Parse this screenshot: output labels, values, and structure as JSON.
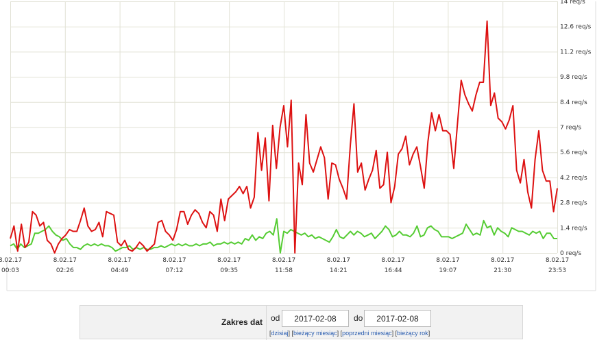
{
  "chart_data": {
    "type": "line",
    "x_tick_labels": [
      [
        "8.02.17",
        "00:03"
      ],
      [
        "8.02.17",
        "02:26"
      ],
      [
        "8.02.17",
        "04:49"
      ],
      [
        "8.02.17",
        "07:12"
      ],
      [
        "8.02.17",
        "09:35"
      ],
      [
        "8.02.17",
        "11:58"
      ],
      [
        "8.02.17",
        "14:21"
      ],
      [
        "8.02.17",
        "16:44"
      ],
      [
        "8.02.17",
        "19:07"
      ],
      [
        "8.02.17",
        "21:30"
      ],
      [
        "8.02.17",
        "23:53"
      ]
    ],
    "y_tick_labels": [
      "0 req/s",
      "1.4 req/s",
      "2.8 req/s",
      "4.2 req/s",
      "5.6 req/s",
      "7 req/s",
      "8.4 req/s",
      "9.8 req/s",
      "11.2 req/s",
      "12.6 req/s",
      "14 req/s"
    ],
    "ylim": [
      0,
      14
    ],
    "grid": true,
    "series": [
      {
        "color": "#dd1111",
        "values": [
          0.8,
          1.5,
          0.1,
          1.6,
          0.3,
          0.6,
          2.3,
          2.1,
          1.5,
          1.7,
          0.7,
          0.5,
          0,
          0.5,
          0.8,
          1.0,
          1.3,
          1.2,
          1.2,
          1.8,
          2.5,
          1.5,
          1.2,
          1.3,
          1.7,
          0.9,
          2.3,
          2.2,
          2.1,
          0.6,
          0.4,
          0.7,
          0.2,
          0.1,
          0.3,
          0.6,
          0.4,
          0.1,
          0.3,
          0.5,
          1.7,
          1.8,
          1.2,
          1.0,
          0.7,
          1.3,
          2.3,
          2.3,
          1.6,
          2.1,
          2.4,
          2.2,
          1.7,
          1.4,
          2.3,
          2.1,
          1.2,
          3.0,
          1.8,
          3.0,
          3.2,
          3.4,
          3.7,
          3.3,
          3.7,
          2.5,
          3.1,
          6.7,
          4.6,
          6.4,
          2.9,
          7.1,
          4.7,
          7.0,
          8.2,
          5.9,
          8.5,
          0,
          5.0,
          3.8,
          7.7,
          5.0,
          4.5,
          5.2,
          5.9,
          5.3,
          3.0,
          5.0,
          4.9,
          4.1,
          3.6,
          3.0,
          6.0,
          8.3,
          4.5,
          5.0,
          3.5,
          4.1,
          4.6,
          5.7,
          3.6,
          3.8,
          5.6,
          2.8,
          3.7,
          5.5,
          5.8,
          6.5,
          4.9,
          5.5,
          5.9,
          4.8,
          3.6,
          6.2,
          7.8,
          6.8,
          7.7,
          6.8,
          6.8,
          6.6,
          4.7,
          7.2,
          9.6,
          8.8,
          8.3,
          7.9,
          8.8,
          9.5,
          9.5,
          12.9,
          8.2,
          8.9,
          7.5,
          7.3,
          6.9,
          7.4,
          8.2,
          4.6,
          3.9,
          5.2,
          3.4,
          2.5,
          5.2,
          6.8,
          4.6,
          4.0,
          4.0,
          2.3,
          3.6
        ]
      },
      {
        "color": "#55cc33",
        "values": [
          0.4,
          0.5,
          0.2,
          0.5,
          0.3,
          0.4,
          0.5,
          1.1,
          1.1,
          1.2,
          1.3,
          1.5,
          1.2,
          1.0,
          0.9,
          0.7,
          0.8,
          0.5,
          0.3,
          0.3,
          0.2,
          0.4,
          0.5,
          0.4,
          0.5,
          0.4,
          0.5,
          0.4,
          0.4,
          0.3,
          0.1,
          0.2,
          0.3,
          0.3,
          0.4,
          0.2,
          0.3,
          0.2,
          0.3,
          0.2,
          0.2,
          0.3,
          0.3,
          0.4,
          0.3,
          0.4,
          0.5,
          0.4,
          0.5,
          0.4,
          0.5,
          0.4,
          0.4,
          0.5,
          0.4,
          0.5,
          0.5,
          0.6,
          0.4,
          0.5,
          0.5,
          0.6,
          0.5,
          0.6,
          0.5,
          0.6,
          0.5,
          0.8,
          0.7,
          1.0,
          0.7,
          0.9,
          0.8,
          1.1,
          1.2,
          1.0,
          1.9,
          0,
          1.2,
          1.1,
          1.3,
          1.2,
          1.1,
          1.0,
          1.1,
          0.9,
          1.0,
          0.8,
          0.9,
          0.8,
          0.7,
          0.6,
          0.9,
          1.3,
          0.9,
          0.8,
          1.0,
          1.2,
          1.0,
          1.2,
          1.1,
          0.9,
          1.0,
          1.1,
          0.8,
          1.0,
          1.2,
          1.5,
          1.3,
          0.9,
          1.0,
          1.2,
          1.0,
          1.0,
          0.9,
          1.1,
          1.5,
          0.9,
          1.0,
          1.4,
          1.5,
          1.3,
          1.2,
          0.9,
          0.9,
          0.9,
          0.8,
          0.9,
          1.0,
          1.1,
          1.6,
          1.3,
          1.0,
          1.1,
          1.0,
          1.8,
          1.4,
          1.5,
          1.0,
          1.4,
          1.2,
          1.1,
          0.9,
          1.4,
          1.3,
          1.2,
          1.2,
          1.1,
          1.0,
          1.2,
          1.1,
          1.2,
          0.8,
          1.1,
          1.1,
          0.8,
          0.8
        ]
      }
    ]
  },
  "range_form": {
    "label": "Zakres dat",
    "from_word": "od",
    "from_value": "2017-02-08",
    "to_word": "do",
    "to_value": "2017-02-08",
    "links": [
      "dzisiaj",
      "bieżący miesiąc",
      "poprzedni miesiąc",
      "bieżący rok"
    ]
  }
}
